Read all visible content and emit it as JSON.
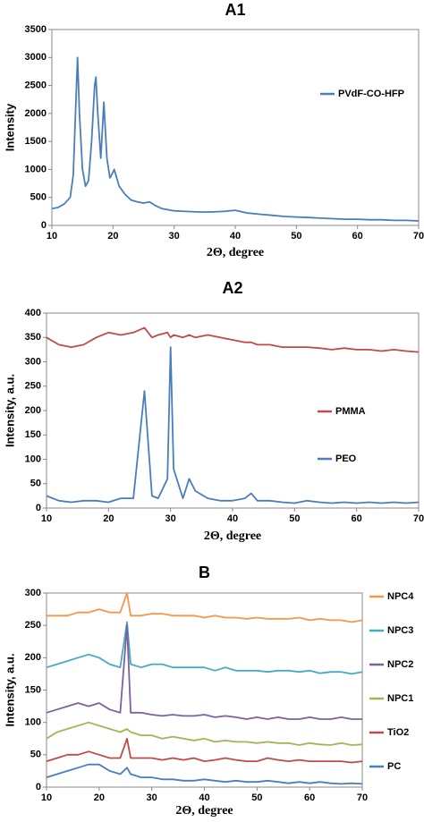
{
  "chart_data": [
    {
      "type": "line",
      "title": "A1",
      "x_label": "2Θ, degree",
      "y_label": "Intensity",
      "legend": "right",
      "x": [
        10,
        11,
        12,
        13,
        13.5,
        14,
        14.2,
        14.5,
        15,
        15.5,
        16,
        16.5,
        17,
        17.2,
        17.5,
        18,
        18.5,
        19,
        19.5,
        20,
        20.2,
        21,
        22,
        23,
        24,
        25,
        26,
        27,
        28,
        30,
        32,
        34,
        36,
        38,
        40,
        42,
        44,
        46,
        48,
        50,
        52,
        54,
        56,
        58,
        60,
        62,
        64,
        66,
        68,
        70
      ],
      "series": [
        {
          "name": "PVdF-CO-HFP",
          "color": "#4a7ebb",
          "values": [
            300,
            320,
            380,
            500,
            900,
            2400,
            3000,
            2000,
            1000,
            700,
            800,
            1500,
            2500,
            2650,
            2000,
            1200,
            2200,
            1200,
            850,
            950,
            1000,
            700,
            550,
            450,
            420,
            400,
            420,
            350,
            300,
            260,
            250,
            240,
            240,
            250,
            270,
            220,
            200,
            180,
            160,
            150,
            140,
            130,
            120,
            110,
            110,
            100,
            100,
            90,
            90,
            80
          ]
        }
      ],
      "xlim": [
        10,
        70
      ],
      "xticks": [
        10,
        20,
        30,
        40,
        50,
        60,
        70
      ],
      "ylim": [
        0,
        3500
      ],
      "yticks": [
        0,
        500,
        1000,
        1500,
        2000,
        2500,
        3000,
        3500
      ]
    },
    {
      "type": "line",
      "title": "A2",
      "x_label": "2Θ, degree",
      "y_label": "Intensity, a.u.",
      "legend": "right",
      "x": [
        10,
        12,
        14,
        16,
        18,
        20,
        22,
        24,
        25.8,
        27,
        28,
        29.5,
        30,
        30.5,
        32,
        33,
        34,
        36,
        38,
        40,
        42,
        43,
        44,
        46,
        48,
        50,
        52,
        54,
        56,
        58,
        60,
        62,
        64,
        66,
        68,
        70
      ],
      "series": [
        {
          "name": "PMMA",
          "color": "#be4b48",
          "values": [
            350,
            335,
            330,
            335,
            350,
            360,
            355,
            360,
            370,
            350,
            355,
            360,
            350,
            355,
            350,
            355,
            350,
            355,
            350,
            345,
            340,
            340,
            335,
            335,
            330,
            330,
            330,
            328,
            325,
            328,
            325,
            325,
            322,
            325,
            322,
            320
          ]
        },
        {
          "name": "PEO",
          "color": "#4a7ebb",
          "values": [
            25,
            15,
            12,
            15,
            15,
            12,
            20,
            20,
            240,
            25,
            20,
            60,
            330,
            80,
            20,
            60,
            35,
            20,
            15,
            15,
            20,
            30,
            15,
            15,
            12,
            10,
            15,
            12,
            10,
            12,
            10,
            12,
            10,
            12,
            10,
            12
          ]
        }
      ],
      "xlim": [
        10,
        70
      ],
      "xticks": [
        10,
        20,
        30,
        40,
        50,
        60,
        70
      ],
      "ylim": [
        0,
        400
      ],
      "yticks": [
        0,
        50,
        100,
        150,
        200,
        250,
        300,
        350,
        400
      ]
    },
    {
      "type": "line",
      "title": "B",
      "x_label": "2Θ, degree",
      "y_label": "Intensity, a.u.",
      "legend": "outside-right",
      "x": [
        10,
        12,
        14,
        16,
        18,
        20,
        22,
        24,
        25.3,
        26,
        28,
        30,
        32,
        34,
        36,
        38,
        40,
        42,
        44,
        46,
        48,
        50,
        52,
        54,
        56,
        58,
        60,
        62,
        64,
        66,
        68,
        70
      ],
      "series": [
        {
          "name": "NPC4",
          "color": "#f79646",
          "values": [
            265,
            265,
            265,
            270,
            270,
            275,
            270,
            270,
            300,
            265,
            265,
            268,
            268,
            265,
            265,
            265,
            262,
            265,
            262,
            262,
            260,
            262,
            260,
            260,
            260,
            262,
            258,
            260,
            258,
            258,
            255,
            258
          ]
        },
        {
          "name": "NPC3",
          "color": "#46aac5",
          "values": [
            185,
            190,
            195,
            200,
            205,
            200,
            190,
            185,
            255,
            190,
            185,
            190,
            190,
            185,
            185,
            185,
            185,
            180,
            185,
            180,
            180,
            180,
            178,
            180,
            180,
            178,
            180,
            176,
            178,
            178,
            175,
            178
          ]
        },
        {
          "name": "NPC2",
          "color": "#7d60a0",
          "values": [
            115,
            120,
            125,
            130,
            125,
            130,
            120,
            115,
            250,
            115,
            115,
            112,
            110,
            112,
            110,
            110,
            112,
            108,
            110,
            108,
            105,
            108,
            105,
            108,
            105,
            105,
            108,
            105,
            105,
            108,
            105,
            105
          ]
        },
        {
          "name": "NPC1",
          "color": "#98b954",
          "values": [
            75,
            85,
            90,
            95,
            100,
            95,
            90,
            85,
            90,
            85,
            80,
            80,
            75,
            78,
            75,
            72,
            75,
            70,
            72,
            70,
            70,
            68,
            70,
            68,
            68,
            65,
            68,
            66,
            65,
            68,
            65,
            66
          ]
        },
        {
          "name": "TiO2",
          "color": "#be4b48",
          "values": [
            40,
            45,
            50,
            50,
            55,
            50,
            45,
            45,
            75,
            45,
            45,
            45,
            42,
            45,
            42,
            45,
            40,
            42,
            45,
            42,
            40,
            40,
            45,
            42,
            40,
            42,
            40,
            40,
            40,
            40,
            38,
            40
          ]
        },
        {
          "name": "PC",
          "color": "#4a7ebb",
          "values": [
            15,
            20,
            25,
            30,
            35,
            35,
            25,
            20,
            30,
            20,
            15,
            15,
            12,
            12,
            10,
            10,
            12,
            10,
            8,
            10,
            8,
            8,
            10,
            8,
            6,
            8,
            6,
            8,
            6,
            5,
            6,
            5
          ]
        }
      ],
      "xlim": [
        10,
        70
      ],
      "xticks": [
        10,
        20,
        30,
        40,
        50,
        60,
        70
      ],
      "ylim": [
        0,
        300
      ],
      "yticks": [
        0,
        50,
        100,
        150,
        200,
        250,
        300
      ]
    }
  ]
}
